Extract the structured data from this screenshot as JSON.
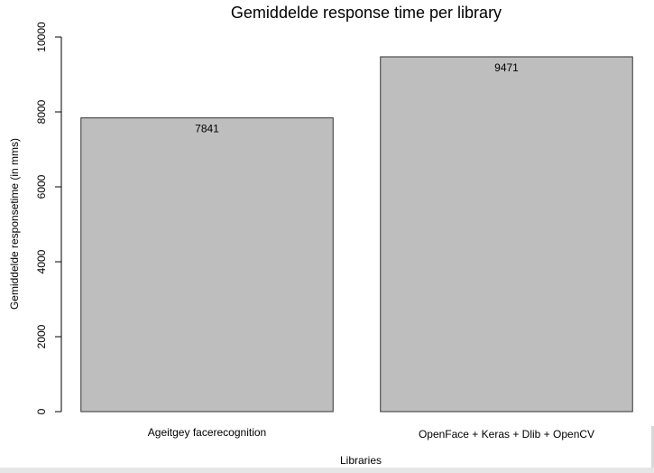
{
  "chart_data": {
    "type": "bar",
    "title": "Gemiddelde response time per library",
    "xlabel": "Libraries",
    "ylabel": "Gemiddelde responsetime (in mms)",
    "categories": [
      "Ageitgey facerecognition",
      "OpenFace + Keras + Dlib + OpenCV"
    ],
    "values": [
      7841,
      9471
    ],
    "value_labels": [
      "7841",
      "9471"
    ],
    "ylim": [
      0,
      10000
    ],
    "yticks": [
      0,
      2000,
      4000,
      6000,
      8000,
      10000
    ],
    "ytick_labels": [
      "0",
      "2000",
      "4000",
      "6000",
      "8000",
      "10000"
    ],
    "grid": false,
    "legend": "none",
    "colors": {
      "bar_fill": "#bebebe",
      "bar_stroke": "#333333"
    }
  }
}
